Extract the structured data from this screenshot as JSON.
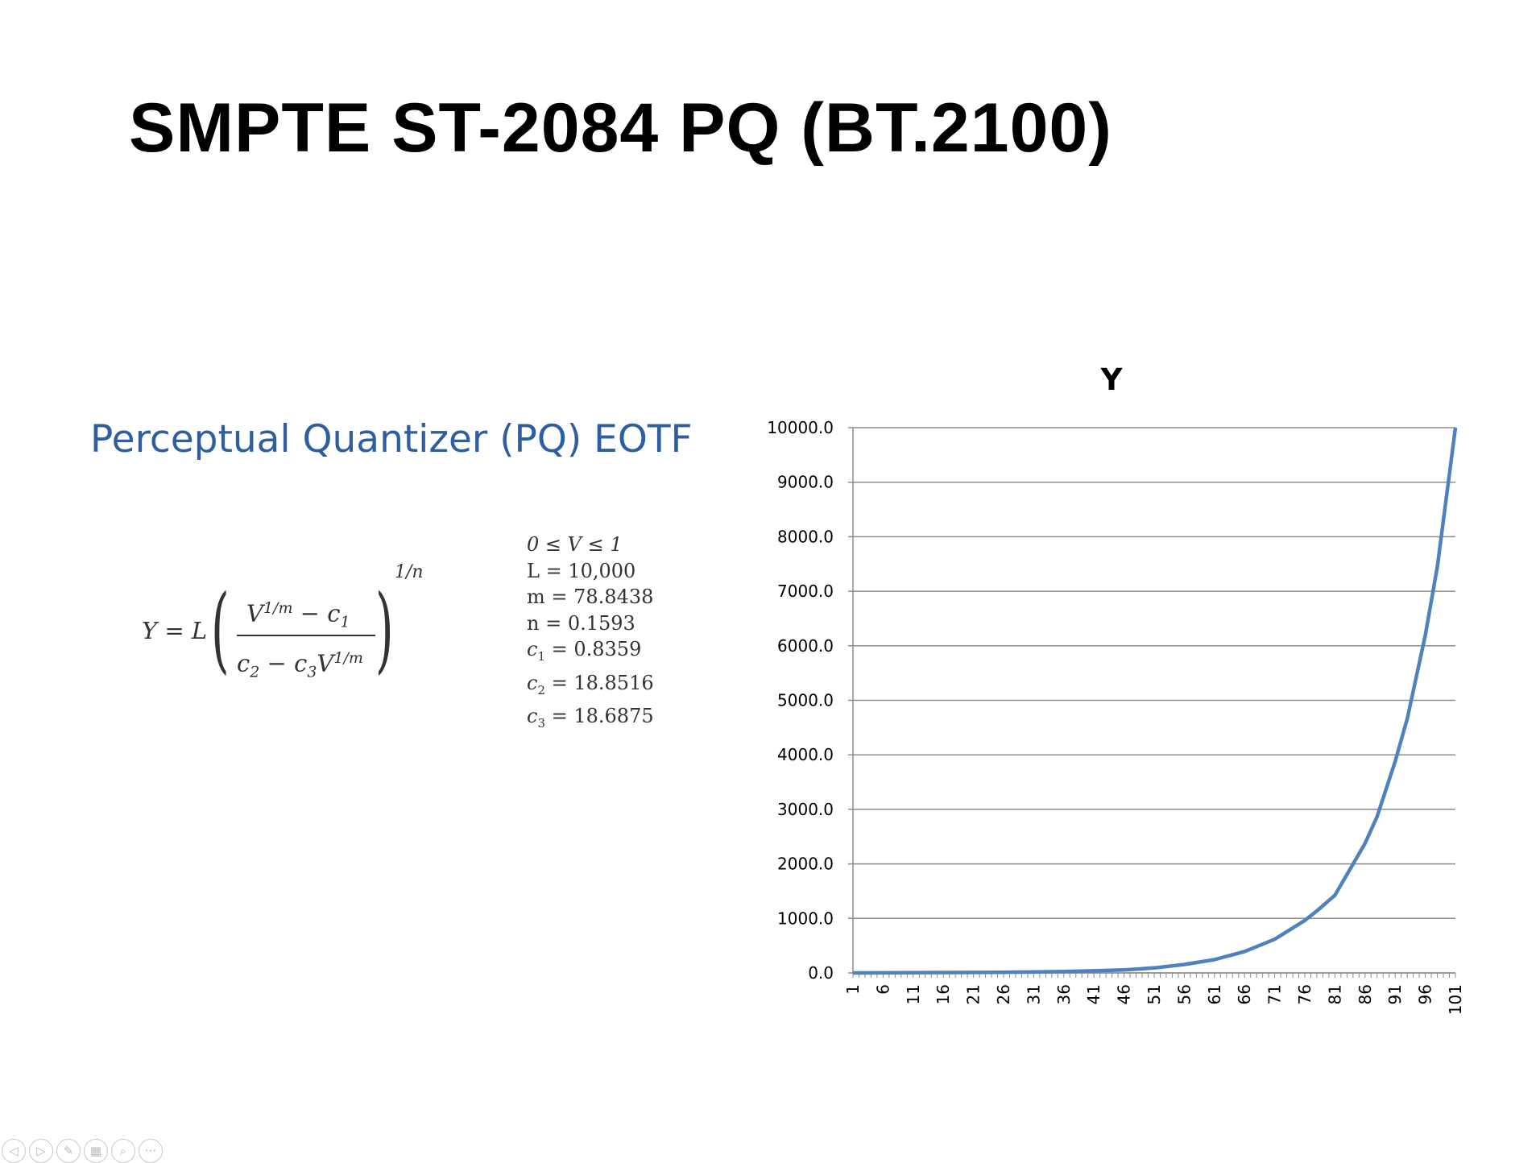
{
  "slide": {
    "title": "SMPTE ST-2084 PQ (BT.2100)",
    "subtitle": "Perceptual Quantizer (PQ) EOTF"
  },
  "formula": {
    "lhs": "Y = L",
    "numerator_base": "V",
    "numerator_exp": "1/m",
    "numerator_rest": " − c",
    "numerator_sub": "1",
    "denominator_a": "c",
    "denominator_a_sub": "2",
    "denominator_mid": " − c",
    "denominator_mid_sub": "3",
    "denominator_base": "V",
    "denominator_exp": "1/m",
    "outer_exp": "1/n"
  },
  "constants": [
    {
      "lhs": "0 ≤ V ≤ 1",
      "sub": ""
    },
    {
      "lhs": "L = 10,000",
      "sub": ""
    },
    {
      "lhs": "m = 78.8438",
      "sub": ""
    },
    {
      "lhs": "n = 0.1593",
      "sub": ""
    },
    {
      "lhs": "c",
      "sub": "1",
      "rhs": " = 0.8359"
    },
    {
      "lhs": "c",
      "sub": "2",
      "rhs": " = 18.8516"
    },
    {
      "lhs": "c",
      "sub": "3",
      "rhs": " = 18.6875"
    }
  ],
  "chart_data": {
    "type": "line",
    "title": "Y",
    "xlabel": "",
    "ylabel": "",
    "ylim": [
      0,
      10000
    ],
    "y_ticks": [
      "0.0",
      "1000.0",
      "2000.0",
      "3000.0",
      "4000.0",
      "5000.0",
      "6000.0",
      "7000.0",
      "8000.0",
      "9000.0",
      "10000.0"
    ],
    "x_tick_labels": [
      "1",
      "6",
      "11",
      "16",
      "21",
      "26",
      "31",
      "36",
      "41",
      "46",
      "51",
      "56",
      "61",
      "66",
      "71",
      "76",
      "81",
      "86",
      "91",
      "96",
      "101"
    ],
    "x_range": [
      1,
      101
    ],
    "grid": true,
    "legend": "none",
    "series": [
      {
        "color": "#4f81bd",
        "x": [
          1,
          26,
          36,
          41,
          46,
          51,
          56,
          61,
          66,
          71,
          76,
          78,
          81,
          86,
          88,
          91,
          93,
          96,
          98,
          101
        ],
        "values": [
          0,
          11,
          26,
          38,
          55,
          92,
          155,
          244,
          393,
          617,
          963,
          1138,
          1425,
          2376,
          2869,
          3881,
          4662,
          6194,
          7455,
          10000
        ]
      }
    ]
  },
  "toolbar": {
    "buttons": [
      {
        "name": "previous-slide-icon",
        "glyph": "◁"
      },
      {
        "name": "next-slide-icon",
        "glyph": "▷"
      },
      {
        "name": "pen-icon",
        "glyph": "✎"
      },
      {
        "name": "slides-grid-icon",
        "glyph": "▦"
      },
      {
        "name": "zoom-icon",
        "glyph": "⌕"
      },
      {
        "name": "more-options-icon",
        "glyph": "···"
      }
    ]
  }
}
